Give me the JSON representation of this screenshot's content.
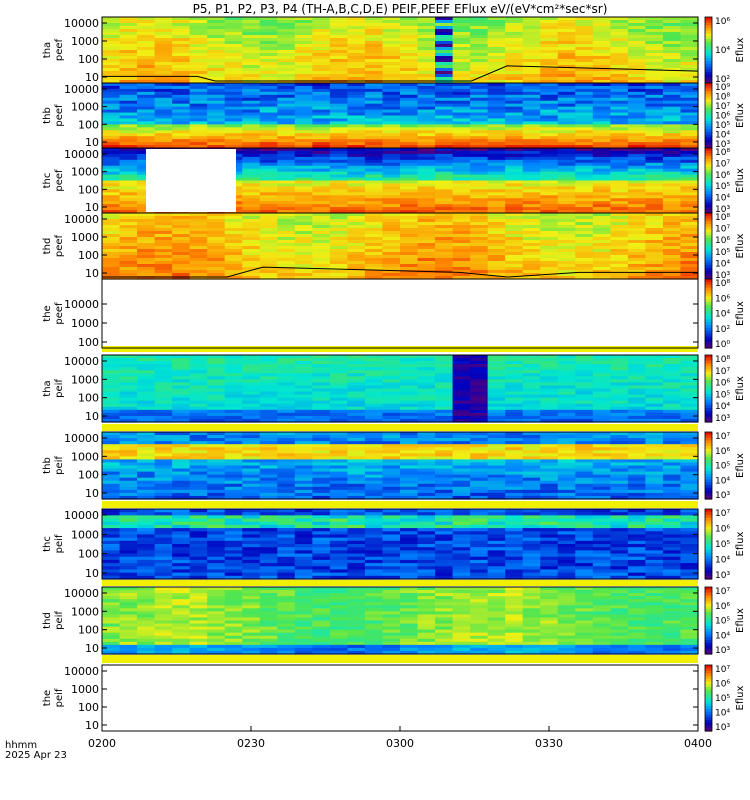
{
  "title": "P5, P1, P2, P3, P4 (TH-A,B,C,D,E) PEIF,PEEF EFlux eV/(eV*cm²*sec*sr)",
  "footer": {
    "time_label": "hhmm",
    "date_label": "2025 Apr 23"
  },
  "colors": {
    "frame": "#000000",
    "background": "#ffffff",
    "trace": "#000000",
    "gap": "#ffffff"
  },
  "chart_data": {
    "type": "heatmap",
    "x_axis": {
      "ticks": [
        "0200",
        "0230",
        "0300",
        "0330",
        "0400"
      ],
      "range": [
        "02:00",
        "04:00"
      ]
    },
    "y_axis": {
      "scale": "log",
      "unit": "eV"
    },
    "colorbar": {
      "label": "Eflux",
      "palette": "rainbow",
      "scale": "log"
    },
    "panels": [
      {
        "ylabel": [
          "tha",
          "peef"
        ],
        "yticks": [
          "10",
          "100",
          "1000",
          "10000"
        ],
        "cbar_ticks": [
          "10²",
          "10⁴",
          "10⁶"
        ],
        "has_data": true,
        "trace": true,
        "gap": false,
        "band": false
      },
      {
        "ylabel": [
          "thb",
          "peef"
        ],
        "yticks": [
          "10",
          "100",
          "1000",
          "10000"
        ],
        "cbar_ticks": [
          "10³",
          "10⁴",
          "10⁵",
          "10⁶",
          "10⁷",
          "10⁸",
          "10⁹"
        ],
        "has_data": true,
        "trace": false,
        "gap": false,
        "band": false
      },
      {
        "ylabel": [
          "thc",
          "peef"
        ],
        "yticks": [
          "10",
          "100",
          "1000",
          "10000"
        ],
        "cbar_ticks": [
          "10³",
          "10⁴",
          "10⁵",
          "10⁶",
          "10⁷",
          "10⁸"
        ],
        "has_data": true,
        "trace": false,
        "gap": true,
        "band": false
      },
      {
        "ylabel": [
          "thd",
          "peef"
        ],
        "yticks": [
          "10",
          "100",
          "1000",
          "10000"
        ],
        "cbar_ticks": [
          "10³",
          "10⁴",
          "10⁵",
          "10⁶",
          "10⁷",
          "10⁸"
        ],
        "has_data": true,
        "trace": true,
        "gap": false,
        "band": false
      },
      {
        "ylabel": [
          "the",
          "peef"
        ],
        "yticks": [
          "100",
          "1000",
          "10000"
        ],
        "cbar_ticks": [
          "10⁰",
          "10²",
          "10⁴",
          "10⁶",
          "10⁸"
        ],
        "has_data": false,
        "trace": false,
        "gap": false,
        "band": true
      },
      {
        "ylabel": [
          "tha",
          "peif"
        ],
        "yticks": [
          "10",
          "100",
          "1000",
          "10000"
        ],
        "cbar_ticks": [
          "10³",
          "10⁴",
          "10⁵",
          "10⁶",
          "10⁷",
          "10⁸"
        ],
        "has_data": true,
        "trace": false,
        "gap": false,
        "band": true
      },
      {
        "ylabel": [
          "thb",
          "peif"
        ],
        "yticks": [
          "10",
          "100",
          "1000",
          "10000"
        ],
        "cbar_ticks": [
          "10³",
          "10⁴",
          "10⁵",
          "10⁶",
          "10⁷"
        ],
        "has_data": true,
        "trace": false,
        "gap": false,
        "band": true
      },
      {
        "ylabel": [
          "thc",
          "peif"
        ],
        "yticks": [
          "10",
          "100",
          "1000",
          "10000"
        ],
        "cbar_ticks": [
          "10³",
          "10⁴",
          "10⁵",
          "10⁶",
          "10⁷"
        ],
        "has_data": true,
        "trace": false,
        "gap": false,
        "band": true
      },
      {
        "ylabel": [
          "thd",
          "peif"
        ],
        "yticks": [
          "10",
          "100",
          "1000",
          "10000"
        ],
        "cbar_ticks": [
          "10³",
          "10⁴",
          "10⁵",
          "10⁶",
          "10⁷"
        ],
        "has_data": true,
        "trace": false,
        "gap": false,
        "band": true
      },
      {
        "ylabel": [
          "the",
          "peif"
        ],
        "yticks": [
          "10",
          "100",
          "1000",
          "10000"
        ],
        "cbar_ticks": [
          "10³",
          "10⁴",
          "10⁵",
          "10⁶",
          "10⁷"
        ],
        "has_data": false,
        "trace": false,
        "gap": false,
        "band": false
      }
    ]
  }
}
